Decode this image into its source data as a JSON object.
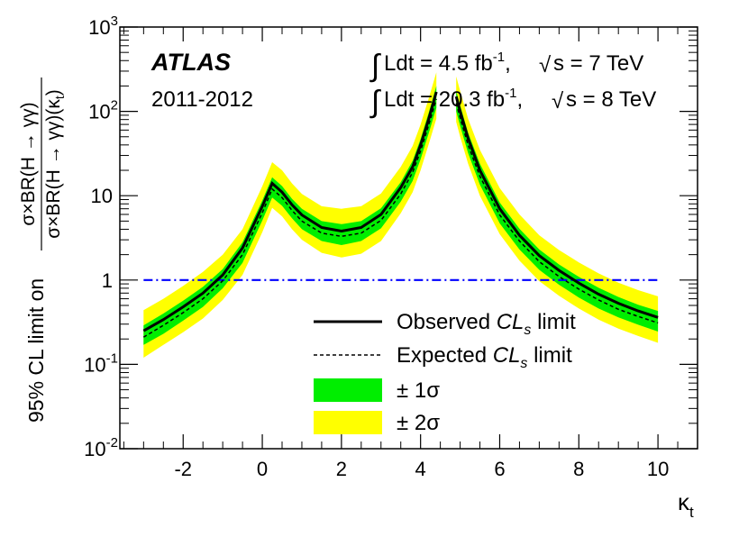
{
  "chart_data": {
    "type": "line",
    "experiment": "ATLAS",
    "period": "2011-2012",
    "lumi_7tev": {
      "prefix": "Ldt = 4.5 fb",
      "exp": "-1",
      "sqrt": "s = 7 TeV"
    },
    "lumi_8tev": {
      "prefix": "Ldt = 20.3 fb",
      "exp": "-1",
      "sqrt": "s = 8 TeV"
    },
    "xlabel": {
      "base": "κ",
      "sub": "t"
    },
    "ylabel": {
      "prefix": "95% CL limit on",
      "numerator": "σ×BR(H → γγ)",
      "denominator_main": "σ×BR(H → γγ)(κ",
      "denominator_sub": "t",
      "denominator_end": ")"
    },
    "xlim": [
      -3.6,
      11.0
    ],
    "ylim": [
      0.01,
      1000
    ],
    "yscale": "log",
    "x_ticks": [
      {
        "v": -2,
        "label": "-2"
      },
      {
        "v": 0,
        "label": "0"
      },
      {
        "v": 2,
        "label": "2"
      },
      {
        "v": 4,
        "label": "4"
      },
      {
        "v": 6,
        "label": "6"
      },
      {
        "v": 8,
        "label": "8"
      },
      {
        "v": 10,
        "label": "10"
      }
    ],
    "y_ticks": [
      {
        "v": 0.01,
        "base": "10",
        "exp": "-2"
      },
      {
        "v": 0.1,
        "base": "10",
        "exp": "-1"
      },
      {
        "v": 1,
        "base": "1",
        "exp": ""
      },
      {
        "v": 10,
        "base": "10",
        "exp": ""
      },
      {
        "v": 100,
        "base": "10",
        "exp": "2"
      },
      {
        "v": 1000,
        "base": "10",
        "exp": "3"
      }
    ],
    "reference_line": {
      "y": 1,
      "style": "dash-dot",
      "color": "#0000ff"
    },
    "left_branch": {
      "x": [
        -3.0,
        -2.5,
        -2.0,
        -1.5,
        -1.0,
        -0.5,
        0.0,
        0.25,
        0.5,
        0.75,
        1.0,
        1.5,
        2.0,
        2.5,
        3.0,
        3.5,
        3.8,
        4.0,
        4.2,
        4.4
      ],
      "observed": [
        0.25,
        0.34,
        0.48,
        0.7,
        1.15,
        2.4,
        7.5,
        14.0,
        11.0,
        7.8,
        5.9,
        4.2,
        3.8,
        4.2,
        6.0,
        12.5,
        22.0,
        40.0,
        80.0,
        170.0
      ],
      "expected": [
        0.21,
        0.29,
        0.41,
        0.6,
        0.98,
        2.0,
        6.3,
        12.0,
        9.5,
        6.7,
        5.0,
        3.6,
        3.3,
        3.6,
        5.1,
        10.5,
        19.0,
        34.0,
        68.0,
        140.0
      ],
      "band1_low": [
        0.17,
        0.23,
        0.33,
        0.48,
        0.8,
        1.6,
        5.1,
        9.5,
        7.6,
        5.4,
        4.0,
        2.9,
        2.6,
        2.9,
        4.1,
        8.5,
        15.0,
        27.0,
        54.0,
        110.0
      ],
      "band1_high": [
        0.29,
        0.4,
        0.57,
        0.83,
        1.35,
        2.8,
        8.8,
        16.5,
        13.0,
        9.2,
        7.0,
        5.0,
        4.6,
        5.0,
        7.1,
        14.5,
        26.0,
        47.0,
        95.0,
        200.0
      ],
      "band2_low": [
        0.12,
        0.17,
        0.24,
        0.35,
        0.58,
        1.15,
        3.7,
        7.2,
        5.7,
        4.0,
        3.0,
        2.1,
        1.85,
        2.05,
        2.9,
        6.2,
        11.0,
        20.0,
        40.0,
        82.0
      ],
      "band2_high": [
        0.44,
        0.6,
        0.85,
        1.25,
        2.0,
        4.0,
        13.0,
        25.0,
        20.0,
        14.0,
        10.5,
        7.5,
        7.0,
        7.5,
        10.6,
        22.0,
        39.0,
        70.0,
        140.0,
        290.0
      ]
    },
    "right_branch": {
      "x": [
        4.9,
        5.0,
        5.2,
        5.5,
        6.0,
        6.5,
        7.0,
        7.5,
        8.0,
        8.5,
        9.0,
        9.5,
        10.0
      ],
      "observed": [
        150.0,
        100.0,
        48.0,
        20.0,
        7.0,
        3.4,
        1.95,
        1.3,
        0.92,
        0.68,
        0.53,
        0.43,
        0.36
      ],
      "expected": [
        125.0,
        84.0,
        40.0,
        17.0,
        5.9,
        2.9,
        1.65,
        1.1,
        0.78,
        0.58,
        0.45,
        0.37,
        0.31
      ],
      "band1_low": [
        100.0,
        67.0,
        32.0,
        13.5,
        4.7,
        2.3,
        1.32,
        0.88,
        0.62,
        0.46,
        0.36,
        0.295,
        0.245
      ],
      "band1_high": [
        175.0,
        118.0,
        56.0,
        24.0,
        8.3,
        4.05,
        2.3,
        1.53,
        1.09,
        0.81,
        0.63,
        0.51,
        0.43
      ],
      "band2_low": [
        75.0,
        50.0,
        24.0,
        10.0,
        3.5,
        1.7,
        0.97,
        0.65,
        0.46,
        0.34,
        0.265,
        0.217,
        0.18
      ],
      "band2_high": [
        260.0,
        175.0,
        82.0,
        35.0,
        12.3,
        6.0,
        3.4,
        2.27,
        1.62,
        1.2,
        0.93,
        0.76,
        0.64
      ]
    },
    "legend": [
      {
        "key": "observed",
        "label_pre": "Observed ",
        "label_it": "CL",
        "label_sub": "s",
        "label_post": " limit"
      },
      {
        "key": "expected",
        "label_pre": "Expected ",
        "label_it": "CL",
        "label_sub": "s",
        "label_post": " limit"
      },
      {
        "key": "band1",
        "label": "± 1σ"
      },
      {
        "key": "band2",
        "label": "± 2σ"
      }
    ],
    "colors": {
      "band1": "#00ee00",
      "band2": "#ffff00",
      "observed": "#000000",
      "expected": "#000000",
      "reference": "#0000ff"
    }
  }
}
